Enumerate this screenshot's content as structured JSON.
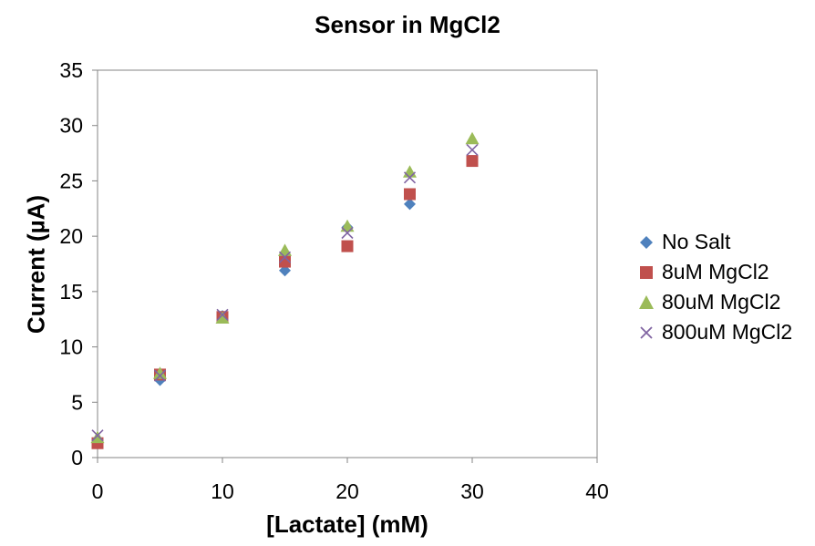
{
  "chart_data": {
    "type": "scatter",
    "title": "Sensor in MgCl2",
    "xlabel": "[Lactate] (mM)",
    "ylabel": "Current (µA)",
    "xlim": [
      0,
      40
    ],
    "ylim": [
      0,
      35
    ],
    "xticks": [
      0,
      10,
      20,
      30,
      40
    ],
    "yticks": [
      0,
      5,
      10,
      15,
      20,
      25,
      30,
      35
    ],
    "grid": false,
    "legend_position": "right",
    "series": [
      {
        "name": "No Salt",
        "marker": "diamond",
        "color": "#4f81bd",
        "x": [
          0,
          5,
          10,
          15,
          20,
          25,
          30
        ],
        "y": [
          1.5,
          7.0,
          12.8,
          16.9,
          20.8,
          22.9,
          26.8
        ]
      },
      {
        "name": "8uM MgCl2",
        "marker": "square",
        "color": "#c0504d",
        "x": [
          0,
          5,
          10,
          15,
          20,
          25,
          30
        ],
        "y": [
          1.3,
          7.5,
          12.7,
          17.7,
          19.1,
          23.8,
          26.8
        ]
      },
      {
        "name": "80uM MgCl2",
        "marker": "triangle",
        "color": "#9bbb59",
        "x": [
          0,
          5,
          10,
          15,
          20,
          25,
          30
        ],
        "y": [
          1.8,
          7.6,
          12.6,
          18.7,
          20.9,
          25.8,
          28.8
        ]
      },
      {
        "name": "800uM MgCl2",
        "marker": "x",
        "color": "#8064a2",
        "x": [
          0,
          5,
          10,
          15,
          20,
          25,
          30
        ],
        "y": [
          2.0,
          7.4,
          12.9,
          18.1,
          20.3,
          25.3,
          27.8
        ]
      }
    ]
  }
}
